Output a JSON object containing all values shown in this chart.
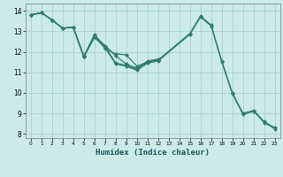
{
  "xlabel": "Humidex (Indice chaleur)",
  "ylabel": "",
  "xlim": [
    -0.5,
    23.5
  ],
  "ylim": [
    7.8,
    14.35
  ],
  "background_color": "#cceaea",
  "grid_color": "#aad0d0",
  "line_color": "#2e7d6e",
  "series": [
    {
      "x": [
        0,
        1,
        2,
        3,
        4,
        5,
        6,
        7,
        8,
        9,
        10,
        11,
        12,
        15,
        16,
        17,
        18,
        19,
        20,
        21,
        22,
        23
      ],
      "y": [
        13.8,
        13.9,
        13.55,
        13.15,
        13.2,
        11.75,
        12.75,
        12.25,
        11.45,
        11.35,
        11.15,
        11.5,
        11.6,
        12.9,
        13.75,
        13.3,
        11.55,
        10.0,
        9.0,
        9.15,
        8.6,
        8.3
      ]
    },
    {
      "x": [
        0,
        1,
        2,
        3,
        4,
        5,
        6,
        7,
        8,
        9,
        10,
        11,
        12
      ],
      "y": [
        13.8,
        13.9,
        13.55,
        13.15,
        13.2,
        11.8,
        12.8,
        12.3,
        11.8,
        11.4,
        11.2,
        11.55,
        11.65
      ]
    },
    {
      "x": [
        0,
        1,
        2,
        3,
        4,
        5,
        6,
        7,
        8,
        9,
        10,
        11,
        12
      ],
      "y": [
        13.8,
        13.9,
        13.55,
        13.15,
        13.2,
        11.75,
        12.85,
        12.15,
        11.9,
        11.85,
        11.3,
        11.5,
        11.6
      ]
    },
    {
      "x": [
        0,
        1,
        2,
        3,
        4,
        5,
        6,
        7,
        8,
        9,
        10,
        11,
        12,
        15,
        16,
        17,
        18,
        19,
        20,
        21,
        22,
        23
      ],
      "y": [
        13.8,
        13.9,
        13.55,
        13.15,
        13.2,
        11.75,
        12.7,
        12.2,
        11.4,
        11.3,
        11.1,
        11.45,
        11.55,
        12.85,
        13.7,
        13.25,
        11.5,
        9.95,
        8.95,
        9.1,
        8.55,
        8.25
      ]
    }
  ],
  "xticks": [
    0,
    1,
    2,
    3,
    4,
    5,
    6,
    7,
    8,
    9,
    10,
    11,
    12,
    13,
    14,
    15,
    16,
    17,
    18,
    19,
    20,
    21,
    22,
    23
  ],
  "yticks": [
    8,
    9,
    10,
    11,
    12,
    13,
    14
  ],
  "marker": "D",
  "markersize": 2.0,
  "linewidth": 0.9
}
